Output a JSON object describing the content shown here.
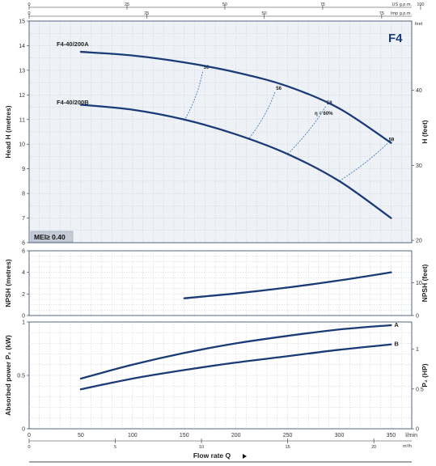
{
  "chart_data": [
    {
      "type": "line",
      "name": "head",
      "series_label": "F4",
      "xlabel": "Flow rate Q",
      "ylabel": "Head H (metres)",
      "ylabel_right": "H (feet)",
      "xlim": [
        0,
        370
      ],
      "ylim": [
        6,
        15
      ],
      "y_ticks": [
        6,
        7,
        8,
        9,
        10,
        11,
        12,
        13,
        14,
        15
      ],
      "y_right_ticks": [
        20,
        30,
        40
      ],
      "y_right_unit": "feet",
      "top_axes": [
        {
          "unit": "US g.p.m.",
          "ticks": [
            0,
            25,
            50,
            75,
            100
          ]
        },
        {
          "unit": "Imp g.p.m.",
          "ticks": [
            0,
            25,
            50,
            75
          ]
        }
      ],
      "series": [
        {
          "name": "F4-40/200A",
          "x": [
            50,
            100,
            150,
            200,
            250,
            300,
            350
          ],
          "y": [
            13.75,
            13.6,
            13.32,
            12.92,
            12.35,
            11.45,
            10.05
          ]
        },
        {
          "name": "F4-40/200B",
          "x": [
            50,
            100,
            150,
            200,
            250,
            300,
            350
          ],
          "y": [
            11.6,
            11.4,
            11.0,
            10.4,
            9.6,
            8.5,
            7.0
          ]
        }
      ],
      "efficiency_lines": [
        {
          "label": "50",
          "x": [
            150,
            168
          ],
          "y": [
            10.95,
            13.0
          ]
        },
        {
          "label": "56",
          "x": [
            213,
            238
          ],
          "y": [
            10.25,
            12.15
          ]
        },
        {
          "label": "58",
          "x": [
            250,
            287
          ],
          "y": [
            9.6,
            11.55
          ]
        },
        {
          "label": "59",
          "x": [
            300,
            347
          ],
          "y": [
            8.5,
            10.05
          ]
        }
      ],
      "efficiency_note": "η = 60%",
      "annotation": "MEI≥ 0.40"
    },
    {
      "type": "line",
      "name": "npsh",
      "ylabel": "NPSH (metres)",
      "ylabel_right": "NPSH (feet)",
      "xlim": [
        0,
        370
      ],
      "ylim": [
        0,
        6
      ],
      "y_ticks": [
        0,
        2,
        4,
        6
      ],
      "y_right_ticks": [
        0,
        10
      ],
      "series": [
        {
          "x": [
            150,
            200,
            250,
            300,
            350
          ],
          "y": [
            1.6,
            2.05,
            2.6,
            3.25,
            4.0
          ]
        }
      ]
    },
    {
      "type": "line",
      "name": "power",
      "ylabel": "Absorbed power P₂ (kW)",
      "ylabel_right": "P₂ (HP)",
      "xlim": [
        0,
        370
      ],
      "ylim": [
        0,
        1
      ],
      "y_ticks": [
        0,
        0.5,
        1
      ],
      "y_tick_labels": [
        "0",
        "0.5",
        "1"
      ],
      "y_right_ticks": [
        0,
        0.5,
        1
      ],
      "y_right_tick_labels": [
        "0",
        "0.5",
        "1"
      ],
      "x_ticks": [
        0,
        50,
        100,
        150,
        200,
        250,
        300,
        350
      ],
      "x_unit": "l/min",
      "bottom_axis": {
        "unit": "m³/h",
        "ticks": [
          0,
          5,
          10,
          15,
          20
        ]
      },
      "series": [
        {
          "name": "A",
          "x": [
            50,
            100,
            150,
            200,
            250,
            300,
            350
          ],
          "y": [
            0.47,
            0.6,
            0.71,
            0.8,
            0.87,
            0.93,
            0.97
          ]
        },
        {
          "name": "B",
          "x": [
            50,
            100,
            150,
            200,
            250,
            300,
            350
          ],
          "y": [
            0.37,
            0.47,
            0.55,
            0.62,
            0.68,
            0.74,
            0.79
          ]
        }
      ]
    }
  ]
}
